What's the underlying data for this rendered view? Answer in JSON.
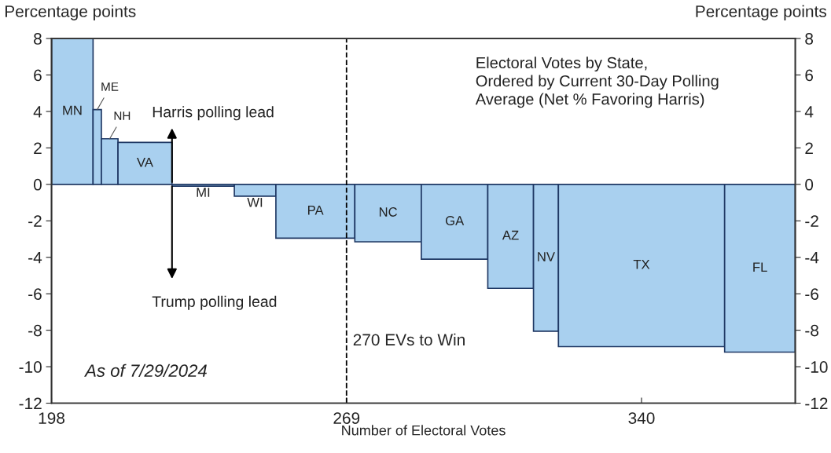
{
  "chart_data": {
    "type": "histogram",
    "bins": [
      198,
      208,
      210,
      214,
      227,
      242,
      252,
      271,
      287,
      303,
      314,
      320,
      360,
      377
    ],
    "categories": [
      "MN",
      "ME",
      "NH",
      "VA",
      "MI",
      "WI",
      "PA",
      "NC",
      "GA",
      "AZ",
      "NV",
      "TX",
      "FL"
    ],
    "values": [
      8.0,
      4.1,
      2.5,
      2.3,
      -0.1,
      -0.65,
      -2.95,
      -3.15,
      -4.1,
      -5.7,
      -8.05,
      -8.9,
      -9.2
    ],
    "color": "#a9d0ef",
    "xlabel": "Number of Electoral Votes",
    "ylabel": "Percentage points",
    "y2label": "Percentage points",
    "xlim": [
      198,
      377
    ],
    "xticks": [
      198,
      269,
      340
    ],
    "ylim": [
      -12,
      8
    ],
    "yticks": [
      -12,
      -10,
      -8,
      -6,
      -4,
      -2,
      0,
      2,
      4,
      6,
      8
    ],
    "y2lim": [
      -12,
      8
    ],
    "y2ticks": [
      -12,
      -10,
      -8,
      -6,
      -4,
      -2,
      0,
      2,
      4,
      6,
      8
    ],
    "ref_lines": [
      {
        "axis": "x",
        "value": 269,
        "label": "270 EVs to Win",
        "line_style": "dashed",
        "color": "#000000"
      }
    ],
    "annotations": [
      "Electoral Votes by State,\nOrdered by Current 30-Day Polling\nAverage (Net % Favoring Harris)",
      "As of 7/29/2024",
      "Harris polling lead",
      "Trump polling lead"
    ],
    "grid": false,
    "legend": false
  }
}
